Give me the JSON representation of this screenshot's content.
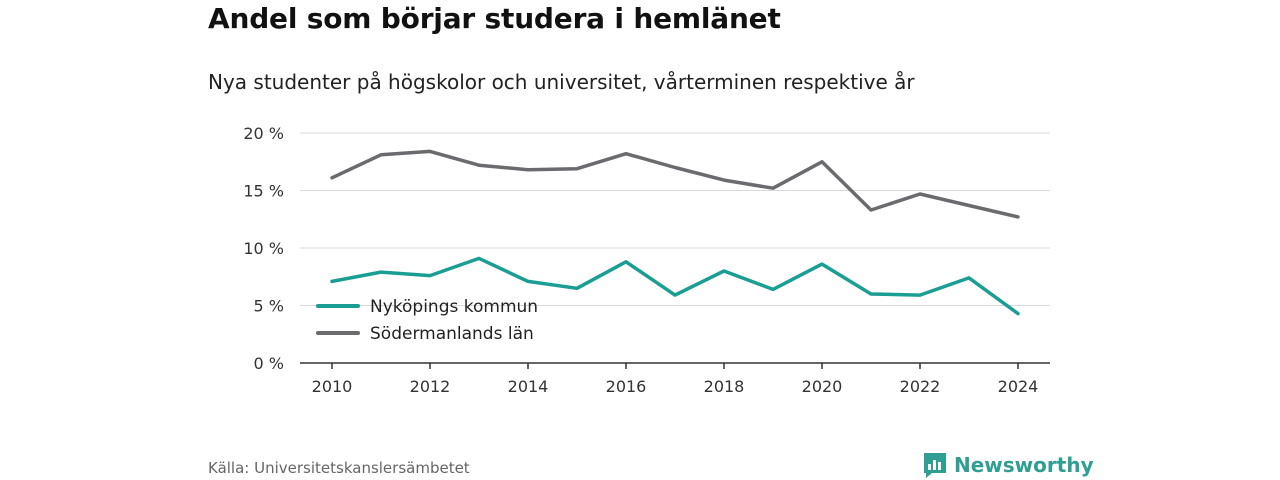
{
  "header": {
    "title": "Andel som börjar studera i hemlänet",
    "subtitle": "Nya studenter på högskolor och universitet, vårterminen respektive år"
  },
  "footer": {
    "source": "Källa: Universitetskanslersämbetet",
    "brand": "Newsworthy",
    "brand_icon": "chart-logo-icon"
  },
  "colors": {
    "nykoping": "#1a9e93",
    "sodermanland": "#6b6a6f",
    "grid": "#d9d9d9",
    "axis": "#333333",
    "brand": "#2f9e93"
  },
  "chart_data": {
    "type": "line",
    "title": "Andel som börjar studera i hemlänet",
    "subtitle": "Nya studenter på högskolor och universitet, vårterminen respektive år",
    "xlabel": "",
    "ylabel": "",
    "x": [
      2010,
      2011,
      2012,
      2013,
      2014,
      2015,
      2016,
      2017,
      2018,
      2019,
      2020,
      2021,
      2022,
      2023,
      2024
    ],
    "xlim": [
      2010,
      2024
    ],
    "xticks": [
      "2010",
      "2012",
      "2014",
      "2016",
      "2018",
      "2020",
      "2022",
      "2024"
    ],
    "ylim": [
      0,
      20
    ],
    "yticks": [
      "0 %",
      "5 %",
      "10 %",
      "15 %",
      "20 %"
    ],
    "grid": true,
    "legend_position": "bottom-left",
    "series": [
      {
        "name": "Nyköpings kommun",
        "color": "#1a9e93",
        "values": [
          7.1,
          7.9,
          7.6,
          9.1,
          7.1,
          6.5,
          8.8,
          5.9,
          8.0,
          6.4,
          8.6,
          6.0,
          5.9,
          7.4,
          4.3
        ]
      },
      {
        "name": "Södermanlands län",
        "color": "#6b6a6f",
        "values": [
          16.1,
          18.1,
          18.4,
          17.2,
          16.8,
          16.9,
          18.2,
          17.0,
          15.9,
          15.2,
          17.5,
          13.3,
          14.7,
          13.7,
          12.7
        ]
      }
    ]
  }
}
